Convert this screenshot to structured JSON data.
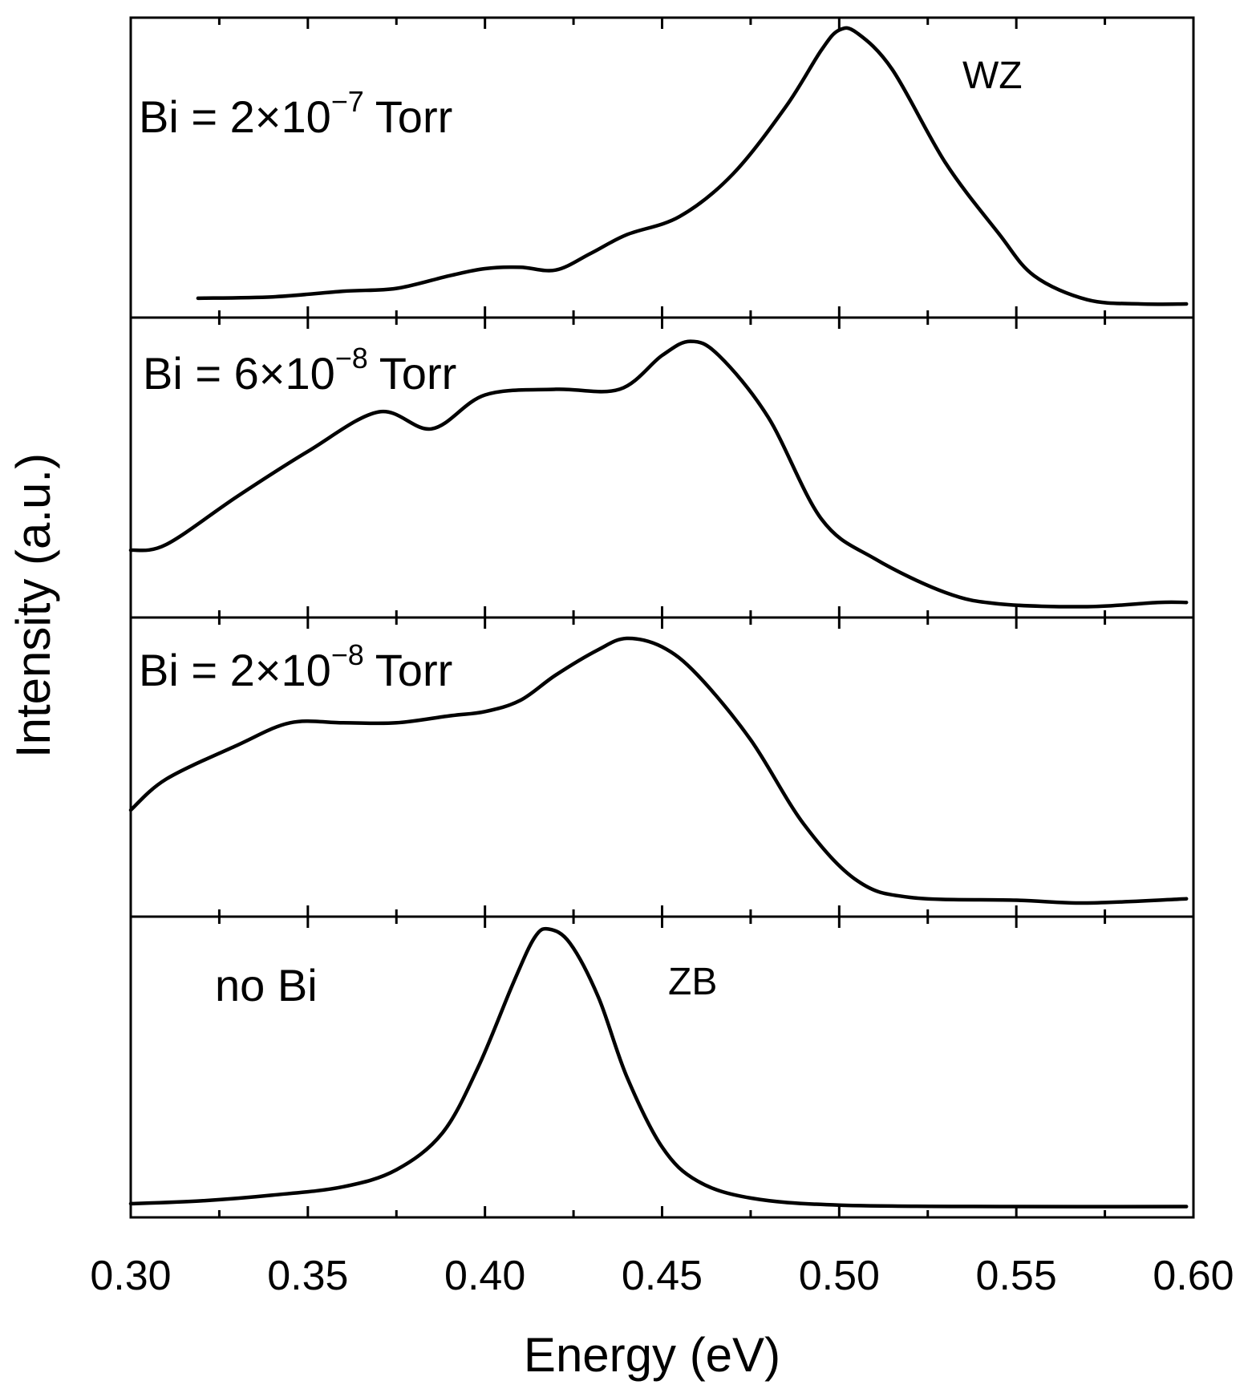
{
  "chart_data": {
    "type": "line",
    "layout": "stacked-panels",
    "xlabel": "Energy (eV)",
    "ylabel": "Intensity (a.u.)",
    "xlim": [
      0.3,
      0.6
    ],
    "ylim": [
      0,
      1
    ],
    "x_ticks": [
      "0.30",
      "0.35",
      "0.40",
      "0.45",
      "0.50",
      "0.55",
      "0.60"
    ],
    "x_tick_values": [
      0.3,
      0.35,
      0.4,
      0.45,
      0.5,
      0.55,
      0.6
    ],
    "minor_tick_step": 0.025,
    "series": [
      {
        "name": "Bi = 2×10−7 Torr",
        "label_parts": {
          "base": "Bi = 2×10",
          "exp": "−7",
          "unit": "Torr"
        },
        "annotation": "WZ",
        "points": [
          [
            0.319,
            0.04
          ],
          [
            0.34,
            0.045
          ],
          [
            0.36,
            0.065
          ],
          [
            0.375,
            0.075
          ],
          [
            0.39,
            0.12
          ],
          [
            0.4,
            0.145
          ],
          [
            0.41,
            0.15
          ],
          [
            0.42,
            0.14
          ],
          [
            0.43,
            0.2
          ],
          [
            0.44,
            0.265
          ],
          [
            0.455,
            0.33
          ],
          [
            0.47,
            0.48
          ],
          [
            0.485,
            0.72
          ],
          [
            0.495,
            0.92
          ],
          [
            0.5,
            0.99
          ],
          [
            0.505,
            0.98
          ],
          [
            0.515,
            0.85
          ],
          [
            0.53,
            0.52
          ],
          [
            0.545,
            0.27
          ],
          [
            0.555,
            0.12
          ],
          [
            0.57,
            0.035
          ],
          [
            0.585,
            0.02
          ],
          [
            0.598,
            0.02
          ]
        ]
      },
      {
        "name": "Bi = 6×10−8 Torr",
        "label_parts": {
          "base": "Bi = 6×10",
          "exp": "−8",
          "unit": "Torr"
        },
        "annotation": "",
        "points": [
          [
            0.3,
            0.21
          ],
          [
            0.31,
            0.23
          ],
          [
            0.33,
            0.4
          ],
          [
            0.35,
            0.56
          ],
          [
            0.37,
            0.7
          ],
          [
            0.385,
            0.64
          ],
          [
            0.4,
            0.76
          ],
          [
            0.42,
            0.78
          ],
          [
            0.438,
            0.78
          ],
          [
            0.45,
            0.9
          ],
          [
            0.458,
            0.95
          ],
          [
            0.466,
            0.9
          ],
          [
            0.48,
            0.68
          ],
          [
            0.495,
            0.32
          ],
          [
            0.51,
            0.18
          ],
          [
            0.53,
            0.06
          ],
          [
            0.545,
            0.02
          ],
          [
            0.57,
            0.01
          ],
          [
            0.59,
            0.025
          ],
          [
            0.598,
            0.025
          ]
        ]
      },
      {
        "name": "Bi = 2×10−8 Torr",
        "label_parts": {
          "base": "Bi = 2×10",
          "exp": "−8",
          "unit": "Torr"
        },
        "annotation": "",
        "points": [
          [
            0.3,
            0.35
          ],
          [
            0.31,
            0.46
          ],
          [
            0.33,
            0.58
          ],
          [
            0.345,
            0.66
          ],
          [
            0.36,
            0.66
          ],
          [
            0.375,
            0.66
          ],
          [
            0.39,
            0.685
          ],
          [
            0.4,
            0.7
          ],
          [
            0.41,
            0.74
          ],
          [
            0.42,
            0.83
          ],
          [
            0.432,
            0.92
          ],
          [
            0.44,
            0.96
          ],
          [
            0.45,
            0.93
          ],
          [
            0.46,
            0.83
          ],
          [
            0.475,
            0.6
          ],
          [
            0.49,
            0.3
          ],
          [
            0.505,
            0.1
          ],
          [
            0.52,
            0.04
          ],
          [
            0.55,
            0.03
          ],
          [
            0.57,
            0.02
          ],
          [
            0.598,
            0.035
          ]
        ]
      },
      {
        "name": "no Bi",
        "label_parts": {
          "base": "no Bi",
          "exp": "",
          "unit": ""
        },
        "annotation": "ZB",
        "points": [
          [
            0.3,
            0.02
          ],
          [
            0.32,
            0.03
          ],
          [
            0.34,
            0.05
          ],
          [
            0.36,
            0.08
          ],
          [
            0.375,
            0.14
          ],
          [
            0.388,
            0.27
          ],
          [
            0.398,
            0.5
          ],
          [
            0.408,
            0.8
          ],
          [
            0.414,
            0.96
          ],
          [
            0.418,
            0.99
          ],
          [
            0.424,
            0.94
          ],
          [
            0.432,
            0.75
          ],
          [
            0.44,
            0.47
          ],
          [
            0.45,
            0.22
          ],
          [
            0.46,
            0.1
          ],
          [
            0.475,
            0.04
          ],
          [
            0.5,
            0.015
          ],
          [
            0.55,
            0.01
          ],
          [
            0.598,
            0.01
          ]
        ]
      }
    ]
  }
}
